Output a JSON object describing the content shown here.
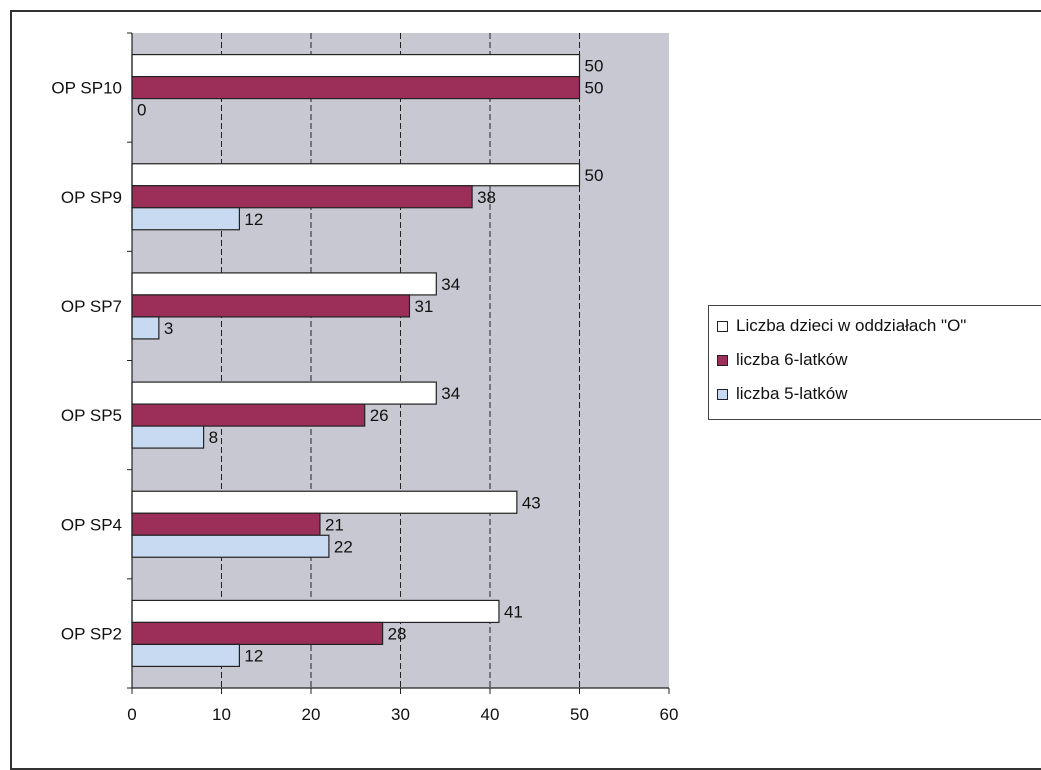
{
  "chart_data": {
    "type": "bar",
    "orientation": "horizontal",
    "categories": [
      "OP SP10",
      "OP SP9",
      "OP SP7",
      "OP SP5",
      "OP SP4",
      "OP SP2"
    ],
    "series": [
      {
        "name": "Liczba dzieci w  oddziałach \"O\"",
        "values": [
          50,
          50,
          34,
          34,
          43,
          41
        ],
        "color": "#ffffff"
      },
      {
        "name": "liczba 6-latków",
        "values": [
          50,
          38,
          31,
          26,
          21,
          28
        ],
        "color": "#9c2f5a"
      },
      {
        "name": "liczba 5-latków",
        "values": [
          0,
          12,
          3,
          8,
          22,
          12
        ],
        "color": "#c8d9f2"
      }
    ],
    "xlim": [
      0,
      60
    ],
    "xticks": [
      "0",
      "10",
      "20",
      "30",
      "40",
      "50",
      "60"
    ],
    "grid": true,
    "plot_background": "#c8c8d2",
    "legend_position": "right"
  }
}
